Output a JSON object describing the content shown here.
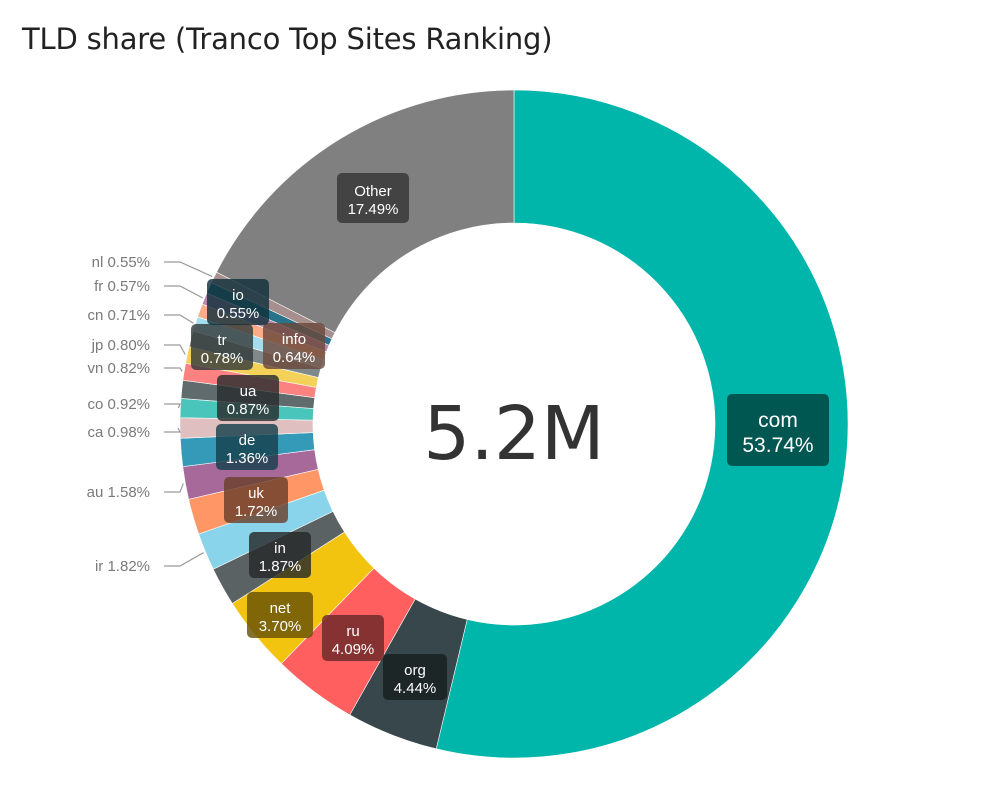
{
  "title": "TLD share (Tranco Top Sites Ranking)",
  "chart_data": {
    "type": "pie",
    "donut": true,
    "title": "TLD share (Tranco Top Sites Ranking)",
    "center_label": "5.2M",
    "unit": "%",
    "slices": [
      {
        "label": "com",
        "value": 53.74,
        "display": "53.74%",
        "color": "#00b5a9",
        "inside": true
      },
      {
        "label": "org",
        "value": 4.44,
        "display": "4.44%",
        "color": "#37474b",
        "inside": true
      },
      {
        "label": "ru",
        "value": 4.09,
        "display": "4.09%",
        "color": "#ff5f5f",
        "inside": true
      },
      {
        "label": "net",
        "value": 3.7,
        "display": "3.70%",
        "color": "#f2c30f",
        "inside": true
      },
      {
        "label": "in",
        "value": 1.87,
        "display": "1.87%",
        "color": "#5b6264",
        "inside": true
      },
      {
        "label": "ir",
        "value": 1.82,
        "display": "1.82%",
        "color": "#8ad4eb",
        "inside": false
      },
      {
        "label": "uk",
        "value": 1.72,
        "display": "1.72%",
        "color": "#fe9666",
        "inside": true
      },
      {
        "label": "au",
        "value": 1.58,
        "display": "1.58%",
        "color": "#a66999",
        "inside": false
      },
      {
        "label": "de",
        "value": 1.36,
        "display": "1.36%",
        "color": "#3599b8",
        "inside": true
      },
      {
        "label": "ca",
        "value": 0.98,
        "display": "0.98%",
        "color": "#dfbfbf",
        "inside": false
      },
      {
        "label": "co",
        "value": 0.92,
        "display": "0.92%",
        "color": "#4ac5bb",
        "inside": false
      },
      {
        "label": "ua",
        "value": 0.87,
        "display": "0.87%",
        "color": "#5f6b6d",
        "inside": true
      },
      {
        "label": "vn",
        "value": 0.82,
        "display": "0.82%",
        "color": "#fb8281",
        "inside": false
      },
      {
        "label": "jp",
        "value": 0.8,
        "display": "0.80%",
        "color": "#f4d25a",
        "inside": false
      },
      {
        "label": "tr",
        "value": 0.78,
        "display": "0.78%",
        "color": "#7f898a",
        "inside": true
      },
      {
        "label": "cn",
        "value": 0.71,
        "display": "0.71%",
        "color": "#a4ddee",
        "inside": false
      },
      {
        "label": "info",
        "value": 0.64,
        "display": "0.64%",
        "color": "#fdab89",
        "inside": true
      },
      {
        "label": "fr",
        "value": 0.57,
        "display": "0.57%",
        "color": "#b687ac",
        "inside": false
      },
      {
        "label": "io",
        "value": 0.55,
        "display": "0.55%",
        "color": "#28738a",
        "inside": true
      },
      {
        "label": "nl",
        "value": 0.55,
        "display": "0.55%",
        "color": "#a78f8f",
        "inside": false
      },
      {
        "label": "Other",
        "value": 17.49,
        "display": "17.49%",
        "color": "#808080",
        "inside": true
      }
    ]
  }
}
